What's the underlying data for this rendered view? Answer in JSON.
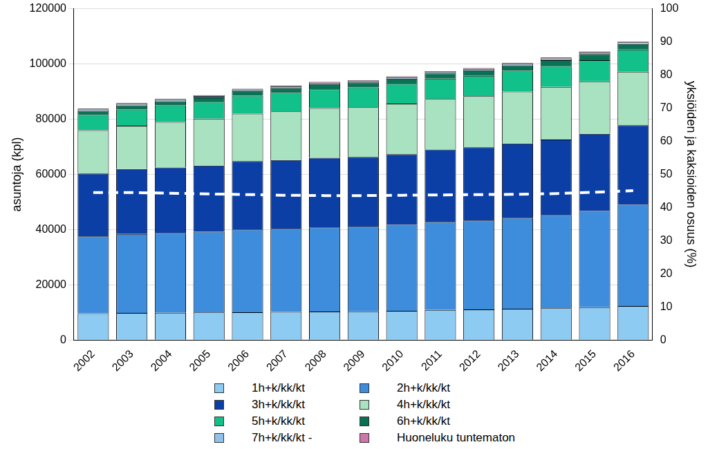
{
  "chart_data": {
    "type": "bar",
    "stacked": true,
    "grid": true,
    "legend": "bottom",
    "y_label": "asuntoja (kpl)",
    "y2_label": "yksiöiden ja kaksioiden osuus (%)",
    "categories": [
      "2002",
      "2003",
      "2004",
      "2005",
      "2006",
      "2007",
      "2008",
      "2009",
      "2010",
      "2011",
      "2012",
      "2013",
      "2014",
      "2015",
      "2016"
    ],
    "ylim": [
      0,
      120000
    ],
    "yticks": [
      0,
      20000,
      40000,
      60000,
      80000,
      100000,
      120000
    ],
    "y2lim": [
      0,
      100
    ],
    "y2ticks": [
      0,
      10,
      20,
      30,
      40,
      50,
      60,
      70,
      80,
      90,
      100
    ],
    "series": [
      {
        "name": "1h+k/kk/kt",
        "color": "#8dcbf3",
        "values": [
          9700,
          9800,
          9900,
          10000,
          10100,
          10200,
          10300,
          10400,
          10600,
          10900,
          11100,
          11300,
          11500,
          11900,
          12300
        ]
      },
      {
        "name": "2h+k/kk/kt",
        "color": "#3d8ddc",
        "values": [
          27800,
          28600,
          28900,
          29200,
          29900,
          30100,
          30500,
          30600,
          31100,
          31900,
          32200,
          33000,
          33800,
          34800,
          36700
        ]
      },
      {
        "name": "3h+k/kk/kt",
        "color": "#0b3fa6",
        "values": [
          22800,
          23500,
          23700,
          24000,
          24800,
          24900,
          25200,
          25300,
          25600,
          26200,
          26500,
          26900,
          27300,
          28000,
          28800
        ]
      },
      {
        "name": "4h+k/kk/kt",
        "color": "#a8e2c0",
        "values": [
          15700,
          15700,
          16500,
          17000,
          17200,
          17600,
          18000,
          18000,
          18300,
          18300,
          18500,
          18800,
          19100,
          19000,
          19400
        ]
      },
      {
        "name": "5h+k/kk/kt",
        "color": "#12c08a",
        "values": [
          5500,
          5900,
          6000,
          6100,
          6500,
          6700,
          6800,
          7200,
          7200,
          7400,
          7400,
          7500,
          7600,
          7700,
          8000
        ]
      },
      {
        "name": "6h+k/kk/kt",
        "color": "#0a7254",
        "values": [
          1500,
          1500,
          1500,
          1600,
          1700,
          1800,
          1900,
          1800,
          1900,
          1900,
          2000,
          2000,
          2100,
          2200,
          2000
        ]
      },
      {
        "name": "7h+k/kk/kt -",
        "color": "#8fc2ea",
        "values": [
          500,
          500,
          500,
          500,
          500,
          500,
          500,
          500,
          500,
          500,
          500,
          500,
          600,
          600,
          600
        ]
      },
      {
        "name": "Huoneluku tuntematon",
        "color": "#cc77aa",
        "values": [
          300,
          300,
          300,
          300,
          300,
          300,
          300,
          300,
          300,
          300,
          300,
          300,
          300,
          300,
          300
        ]
      },
      {
        "type": "line",
        "axis": "y2",
        "color": "#ffffff",
        "line_style": "dashed",
        "values": [
          44.5,
          44.5,
          44.3,
          44.1,
          43.9,
          43.7,
          43.6,
          43.6,
          43.7,
          43.8,
          43.9,
          44.0,
          44.2,
          44.6,
          45.1
        ]
      }
    ]
  }
}
